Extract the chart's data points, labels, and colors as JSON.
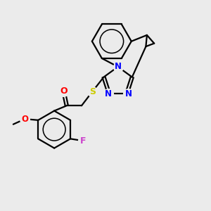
{
  "bg_color": "#ebebeb",
  "atom_colors": {
    "N": "#0000ff",
    "O": "#ff0000",
    "S": "#cccc00",
    "F": "#cc44cc",
    "C": "#000000"
  },
  "bond_color": "#000000",
  "line_width": 1.6
}
